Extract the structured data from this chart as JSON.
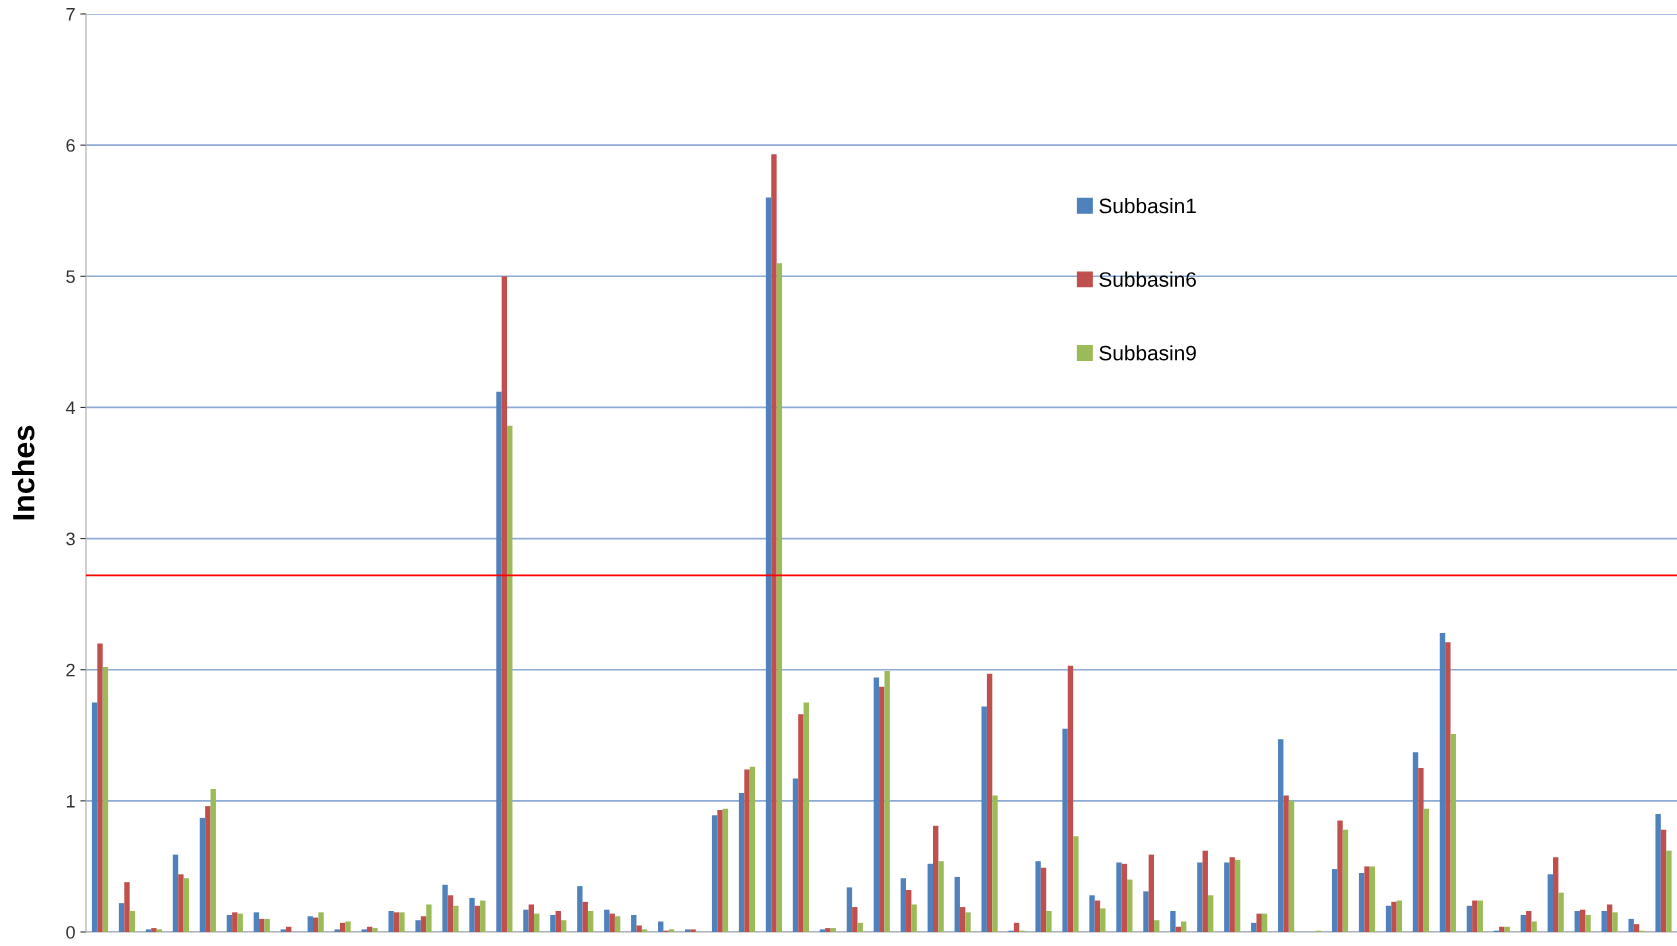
{
  "chart_data": {
    "type": "bar",
    "ylabel": "Inches",
    "categories": [
      null,
      null,
      null,
      null,
      null,
      null,
      null,
      null,
      null,
      null,
      null,
      null,
      null,
      null,
      null,
      null,
      null,
      null,
      null,
      null,
      null,
      null,
      null,
      null,
      null,
      null,
      null,
      null,
      null,
      null,
      null,
      null,
      null,
      null,
      null,
      null,
      null,
      null,
      null,
      null,
      null,
      null,
      null,
      null,
      null,
      null,
      null,
      null,
      null,
      null,
      null,
      null,
      null,
      null,
      null,
      null,
      null,
      null,
      null
    ],
    "series": [
      {
        "name": "Subbasin1",
        "color": "#4f81bd",
        "values": [
          1.75,
          0.22,
          0.02,
          0.59,
          0.87,
          0.13,
          0.15,
          0.02,
          0.12,
          0.02,
          0.02,
          0.16,
          0.09,
          0.36,
          0.26,
          4.12,
          0.17,
          0.13,
          0.35,
          0.17,
          0.13,
          0.08,
          0.02,
          0.89,
          1.06,
          5.6,
          1.17,
          0.02,
          0.34,
          1.94,
          0.41,
          0.52,
          0.42,
          1.72,
          0.01,
          0.54,
          1.55,
          0.28,
          0.53,
          0.31,
          0.16,
          0.53,
          0.53,
          0.07,
          1.47,
          0.0,
          0.48,
          0.45,
          0.2,
          1.37,
          2.28,
          0.2,
          0.01,
          0.13,
          0.44,
          0.16,
          0.16,
          0.1,
          0.9
        ]
      },
      {
        "name": "Subbasin6",
        "color": "#c0504d",
        "values": [
          2.2,
          0.38,
          0.03,
          0.44,
          0.96,
          0.15,
          0.1,
          0.04,
          0.11,
          0.07,
          0.04,
          0.15,
          0.12,
          0.28,
          0.2,
          5.0,
          0.21,
          0.16,
          0.23,
          0.14,
          0.05,
          0.01,
          0.02,
          0.93,
          1.24,
          5.93,
          1.66,
          0.03,
          0.19,
          1.87,
          0.32,
          0.81,
          0.19,
          1.97,
          0.07,
          0.49,
          2.03,
          0.24,
          0.52,
          0.59,
          0.04,
          0.62,
          0.57,
          0.14,
          1.04,
          0.0,
          0.85,
          0.5,
          0.23,
          1.25,
          2.21,
          0.24,
          0.04,
          0.16,
          0.57,
          0.17,
          0.21,
          0.06,
          0.78
        ]
      },
      {
        "name": "Subbasin9",
        "color": "#9bbb59",
        "values": [
          2.02,
          0.16,
          0.02,
          0.41,
          1.09,
          0.14,
          0.1,
          0.0,
          0.15,
          0.08,
          0.03,
          0.15,
          0.21,
          0.2,
          0.24,
          3.86,
          0.14,
          0.09,
          0.16,
          0.12,
          0.02,
          0.02,
          0.0,
          0.94,
          1.26,
          5.1,
          1.75,
          0.03,
          0.07,
          1.99,
          0.21,
          0.54,
          0.15,
          1.04,
          0.01,
          0.16,
          0.73,
          0.18,
          0.4,
          0.09,
          0.08,
          0.28,
          0.55,
          0.14,
          1.0,
          0.01,
          0.78,
          0.5,
          0.24,
          0.94,
          1.51,
          0.24,
          0.04,
          0.08,
          0.3,
          0.13,
          0.15,
          0.01,
          0.62
        ]
      }
    ],
    "ylim": [
      0,
      7
    ],
    "yticks": [
      0,
      1,
      2,
      3,
      4,
      5,
      6,
      7
    ],
    "grid": "y",
    "legend": "top right",
    "tick_labels": "y",
    "ref_lines": [
      {
        "axis": "y",
        "value": 2.72,
        "color": "#ff0000"
      }
    ]
  }
}
